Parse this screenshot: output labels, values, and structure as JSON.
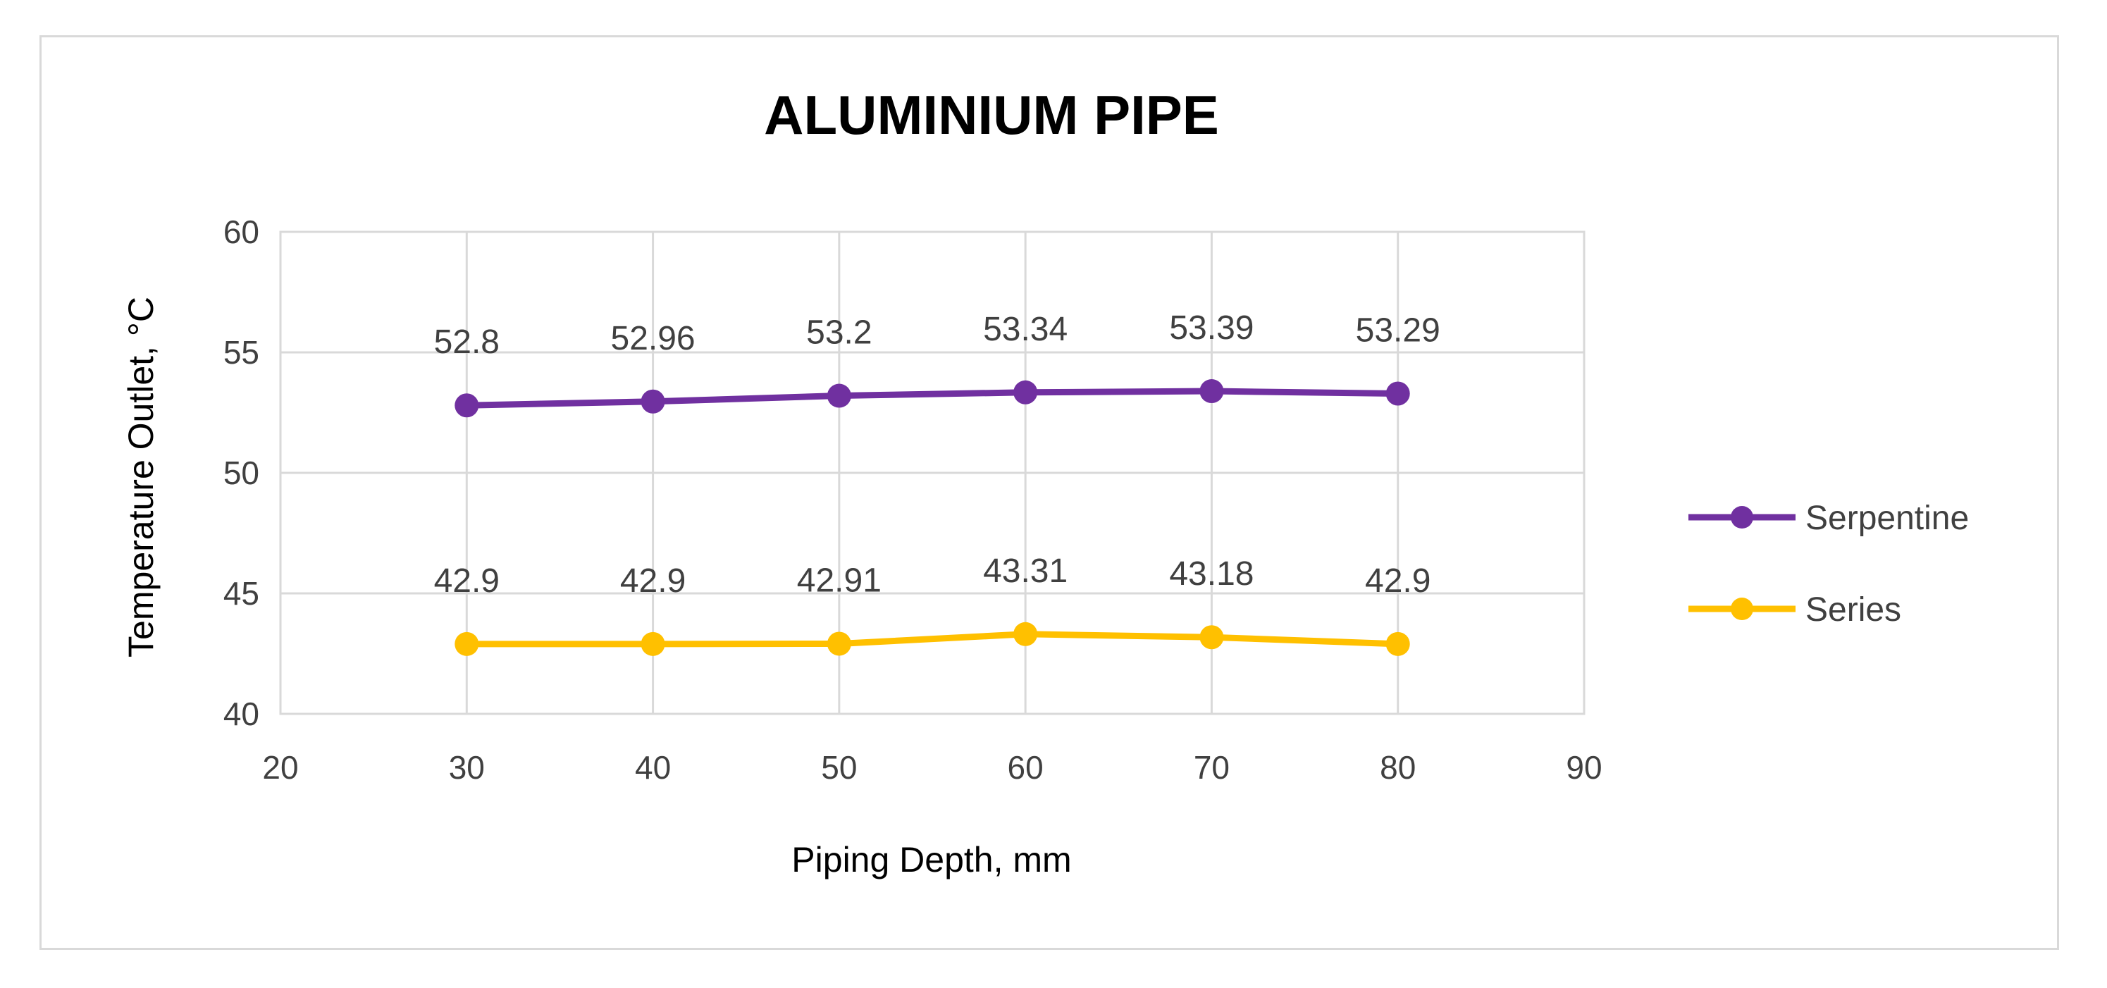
{
  "chart_data": {
    "type": "line",
    "title": "ALUMINIUM PIPE",
    "xlabel": "Piping Depth, mm",
    "ylabel": "Temperature Outlet, °C",
    "xlim": [
      20,
      90
    ],
    "ylim": [
      40,
      60
    ],
    "x_ticks": [
      20,
      30,
      40,
      50,
      60,
      70,
      80,
      90
    ],
    "y_ticks": [
      40,
      45,
      50,
      55,
      60
    ],
    "grid": true,
    "legend_position": "right",
    "x": [
      30,
      40,
      50,
      60,
      70,
      80
    ],
    "series": [
      {
        "name": "Serpentine",
        "color": "#7030a0",
        "values": [
          52.8,
          52.96,
          53.2,
          53.34,
          53.39,
          53.29
        ],
        "labels": [
          "52.8",
          "52.96",
          "53.2",
          "53.34",
          "53.39",
          "53.29"
        ]
      },
      {
        "name": "Series",
        "color": "#ffc000",
        "values": [
          42.9,
          42.9,
          42.91,
          43.31,
          43.18,
          42.9
        ],
        "labels": [
          "42.9",
          "42.9",
          "42.91",
          "43.31",
          "43.18",
          "42.9"
        ]
      }
    ]
  }
}
